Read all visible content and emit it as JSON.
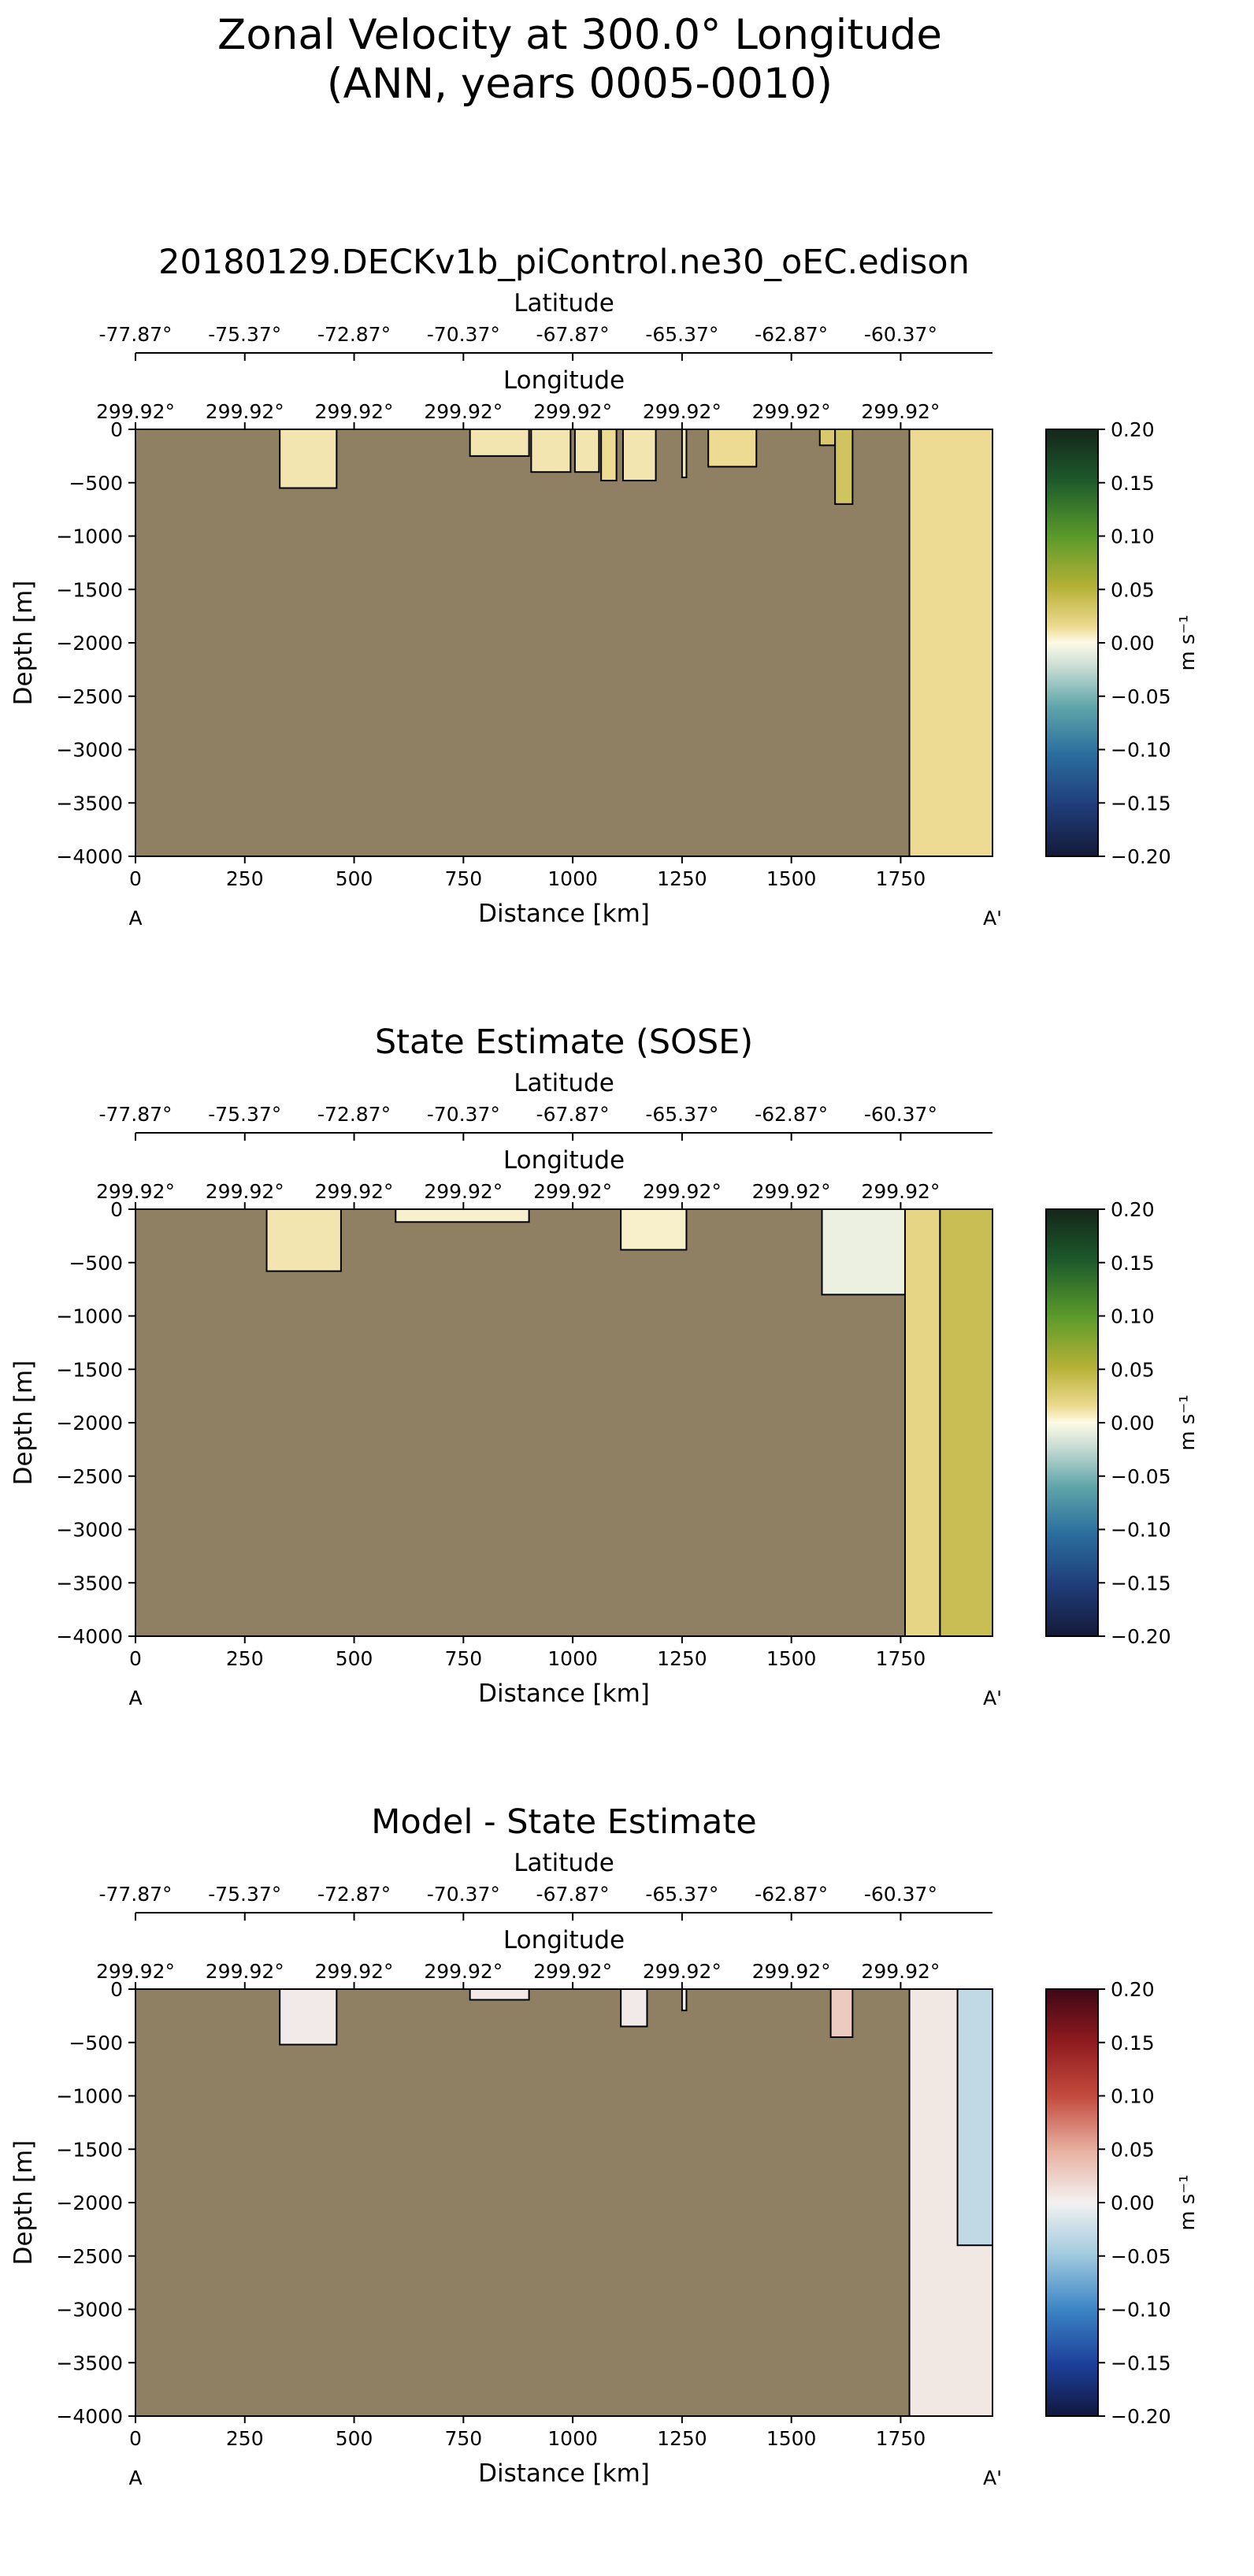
{
  "figure": {
    "title_line1": "Zonal Velocity at 300.0° Longitude",
    "title_line2": "(ANN, years 0005-0010)"
  },
  "chart_data": [
    {
      "type": "heatmap",
      "title": "20180129.DECKv1b_piControl.ne30_oEC.edison",
      "xlabel": "Distance [km]",
      "ylabel": "Depth [m]",
      "xlim": [
        0,
        1960
      ],
      "ylim": [
        -4000,
        0
      ],
      "x_ticks": [
        0,
        250,
        500,
        750,
        1000,
        1250,
        1500,
        1750
      ],
      "y_ticks": [
        0,
        -500,
        -1000,
        -1500,
        -2000,
        -2500,
        -3000,
        -3500,
        -4000
      ],
      "lat_label": "Latitude",
      "lat_ticks": [
        "-77.87°",
        "-75.37°",
        "-72.87°",
        "-70.37°",
        "-67.87°",
        "-65.37°",
        "-62.87°",
        "-60.37°"
      ],
      "lon_label": "Longitude",
      "lon_ticks": [
        "299.92°",
        "299.92°",
        "299.92°",
        "299.92°",
        "299.92°",
        "299.92°",
        "299.92°",
        "299.92°"
      ],
      "start_label": "A",
      "end_label": "A'",
      "colorbar": {
        "label": "m s⁻¹",
        "range": [
          -0.2,
          0.2
        ],
        "colormap": "diverging-green-yellow-blue",
        "ticks": [
          "0.20",
          "0.15",
          "0.10",
          "0.05",
          "0.00",
          "−0.05",
          "−0.10",
          "−0.15",
          "−0.20"
        ]
      },
      "land_color": "#8f8063",
      "water_regions": [
        {
          "x": [
            330,
            460
          ],
          "depth": [
            0,
            -550
          ],
          "value": 0.01
        },
        {
          "x": [
            765,
            900
          ],
          "depth": [
            0,
            -250
          ],
          "value": 0.01
        },
        {
          "x": [
            905,
            995
          ],
          "depth": [
            0,
            -400
          ],
          "value": 0.01
        },
        {
          "x": [
            1005,
            1060
          ],
          "depth": [
            0,
            -400
          ],
          "value": 0.01
        },
        {
          "x": [
            1065,
            1100
          ],
          "depth": [
            0,
            -480
          ],
          "value": 0.015
        },
        {
          "x": [
            1115,
            1190
          ],
          "depth": [
            0,
            -480
          ],
          "value": 0.01
        },
        {
          "x": [
            1250,
            1260
          ],
          "depth": [
            0,
            -450
          ],
          "value": 0.01
        },
        {
          "x": [
            1310,
            1420
          ],
          "depth": [
            0,
            -350
          ],
          "value": 0.015
        },
        {
          "x": [
            1565,
            1600
          ],
          "depth": [
            0,
            -150
          ],
          "value": 0.03
        },
        {
          "x": [
            1600,
            1640
          ],
          "depth": [
            0,
            -700
          ],
          "value": 0.035
        },
        {
          "x": [
            1770,
            1960
          ],
          "depth": [
            0,
            -4000
          ],
          "value": 0.015
        }
      ]
    },
    {
      "type": "heatmap",
      "title": "State Estimate (SOSE)",
      "xlabel": "Distance [km]",
      "ylabel": "Depth [m]",
      "xlim": [
        0,
        1960
      ],
      "ylim": [
        -4000,
        0
      ],
      "x_ticks": [
        0,
        250,
        500,
        750,
        1000,
        1250,
        1500,
        1750
      ],
      "y_ticks": [
        0,
        -500,
        -1000,
        -1500,
        -2000,
        -2500,
        -3000,
        -3500,
        -4000
      ],
      "lat_label": "Latitude",
      "lat_ticks": [
        "-77.87°",
        "-75.37°",
        "-72.87°",
        "-70.37°",
        "-67.87°",
        "-65.37°",
        "-62.87°",
        "-60.37°"
      ],
      "lon_label": "Longitude",
      "lon_ticks": [
        "299.92°",
        "299.92°",
        "299.92°",
        "299.92°",
        "299.92°",
        "299.92°",
        "299.92°",
        "299.92°"
      ],
      "start_label": "A",
      "end_label": "A'",
      "colorbar": {
        "label": "m s⁻¹",
        "range": [
          -0.2,
          0.2
        ],
        "colormap": "diverging-green-yellow-blue",
        "ticks": [
          "0.20",
          "0.15",
          "0.10",
          "0.05",
          "0.00",
          "−0.05",
          "−0.10",
          "−0.15",
          "−0.20"
        ]
      },
      "land_color": "#8f8063",
      "water_regions": [
        {
          "x": [
            300,
            470
          ],
          "depth": [
            0,
            -580
          ],
          "value": 0.01
        },
        {
          "x": [
            595,
            900
          ],
          "depth": [
            0,
            -120
          ],
          "value": 0.005
        },
        {
          "x": [
            1110,
            1260
          ],
          "depth": [
            0,
            -380
          ],
          "value": 0.005
        },
        {
          "x": [
            1570,
            1760
          ],
          "depth": [
            0,
            -800
          ],
          "value": -0.008
        },
        {
          "x": [
            1760,
            1840
          ],
          "depth": [
            0,
            -4000
          ],
          "value": 0.02
        },
        {
          "x": [
            1840,
            1960
          ],
          "depth": [
            0,
            -4000
          ],
          "value": 0.04
        }
      ]
    },
    {
      "type": "heatmap",
      "title": "Model - State Estimate",
      "xlabel": "Distance [km]",
      "ylabel": "Depth [m]",
      "xlim": [
        0,
        1960
      ],
      "ylim": [
        -4000,
        0
      ],
      "x_ticks": [
        0,
        250,
        500,
        750,
        1000,
        1250,
        1500,
        1750
      ],
      "y_ticks": [
        0,
        -500,
        -1000,
        -1500,
        -2000,
        -2500,
        -3000,
        -3500,
        -4000
      ],
      "lat_label": "Latitude",
      "lat_ticks": [
        "-77.87°",
        "-75.37°",
        "-72.87°",
        "-70.37°",
        "-67.87°",
        "-65.37°",
        "-62.87°",
        "-60.37°"
      ],
      "lon_label": "Longitude",
      "lon_ticks": [
        "299.92°",
        "299.92°",
        "299.92°",
        "299.92°",
        "299.92°",
        "299.92°",
        "299.92°",
        "299.92°"
      ],
      "start_label": "A",
      "end_label": "A'",
      "colorbar": {
        "label": "m s⁻¹",
        "range": [
          -0.2,
          0.2
        ],
        "colormap": "diverging-red-white-blue",
        "ticks": [
          "0.20",
          "0.15",
          "0.10",
          "0.05",
          "0.00",
          "−0.05",
          "−0.10",
          "−0.15",
          "−0.20"
        ]
      },
      "land_color": "#8f8063",
      "water_regions": [
        {
          "x": [
            330,
            460
          ],
          "depth": [
            0,
            -520
          ],
          "value": 0.005
        },
        {
          "x": [
            765,
            900
          ],
          "depth": [
            0,
            -100
          ],
          "value": 0.005
        },
        {
          "x": [
            1110,
            1170
          ],
          "depth": [
            0,
            -350
          ],
          "value": 0.005
        },
        {
          "x": [
            1250,
            1260
          ],
          "depth": [
            0,
            -200
          ],
          "value": 0.005
        },
        {
          "x": [
            1590,
            1640
          ],
          "depth": [
            0,
            -450
          ],
          "value": 0.03
        },
        {
          "x": [
            1770,
            1960
          ],
          "depth": [
            0,
            -4000
          ],
          "value": 0.008
        },
        {
          "x": [
            1880,
            1960
          ],
          "depth": [
            0,
            -2400
          ],
          "value": -0.03
        }
      ]
    }
  ]
}
